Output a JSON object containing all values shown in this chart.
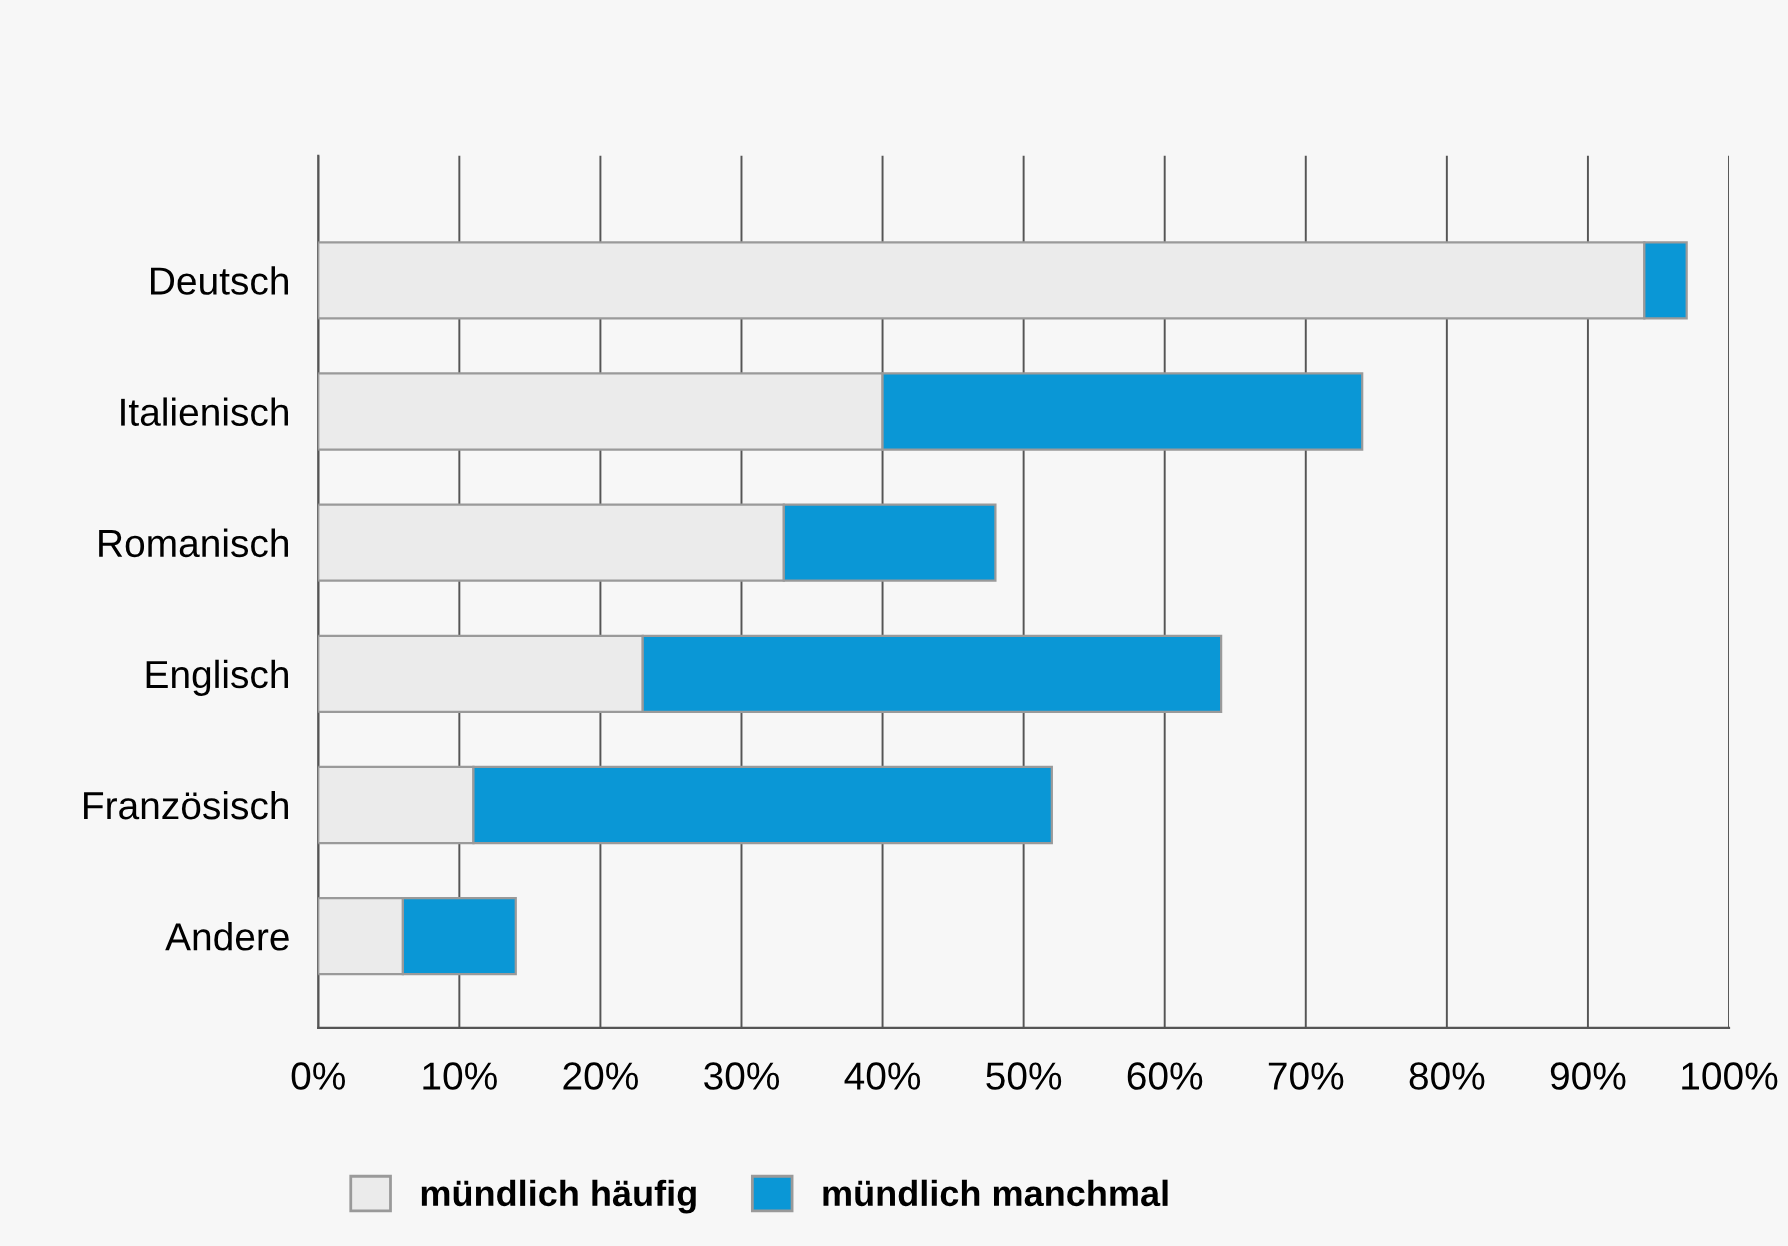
{
  "chart_data": {
    "type": "bar",
    "orientation": "horizontal",
    "stacked": true,
    "categories": [
      "Deutsch",
      "Italienisch",
      "Romanisch",
      "Englisch",
      "Französisch",
      "Andere"
    ],
    "series": [
      {
        "name": "mündlich häufig",
        "color": "#ebebeb",
        "values": [
          94,
          40,
          33,
          23,
          11,
          6
        ]
      },
      {
        "name": "mündlich manchmal",
        "color": "#0a97d6",
        "values": [
          3,
          34,
          15,
          41,
          41,
          8
        ]
      }
    ],
    "xlim": [
      0,
      100
    ],
    "xticks": [
      {
        "value": 0,
        "label": "0%"
      },
      {
        "value": 10,
        "label": "10%"
      },
      {
        "value": 20,
        "label": "20%"
      },
      {
        "value": 30,
        "label": "30%"
      },
      {
        "value": 40,
        "label": "40%"
      },
      {
        "value": 50,
        "label": "50%"
      },
      {
        "value": 60,
        "label": "60%"
      },
      {
        "value": 70,
        "label": "70%"
      },
      {
        "value": 80,
        "label": "80%"
      },
      {
        "value": 90,
        "label": "90%"
      },
      {
        "value": 100,
        "label": "100%"
      }
    ],
    "grid": "x",
    "legend": "bottom"
  }
}
